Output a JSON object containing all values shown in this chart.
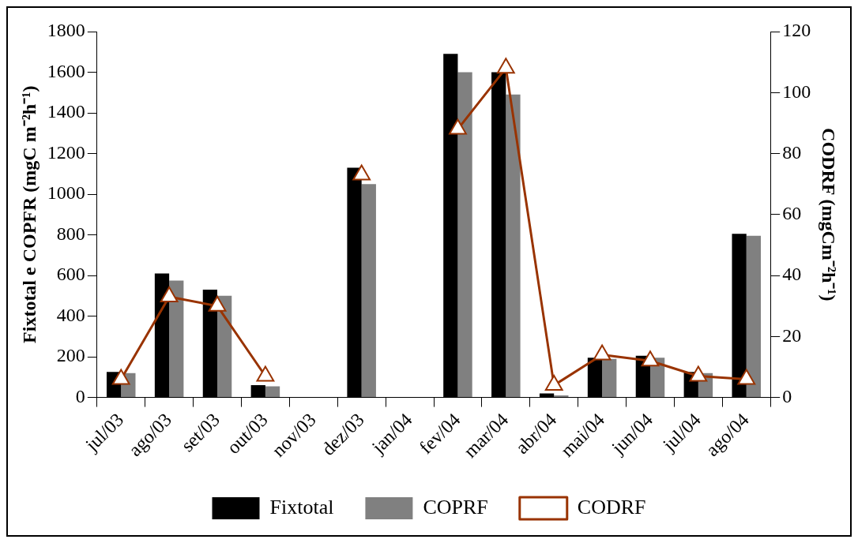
{
  "chart_data": {
    "type": "bar",
    "xlabel": null,
    "ylabel": "Fixtotal e COPFR (mgC m⁻²h⁻¹)",
    "y2label": "CODRF (mgCm⁻²h⁻¹)",
    "categories": [
      "jul/03",
      "ago/03",
      "set/03",
      "out/03",
      "nov/03",
      "dez/03",
      "jan/04",
      "fev/04",
      "mar/04",
      "abr/04",
      "mai/04",
      "jun/04",
      "jul/04",
      "ago/04"
    ],
    "series": [
      {
        "name": "Fixtotal",
        "color": "#000000",
        "values": [
          125,
          610,
          530,
          60,
          null,
          1130,
          null,
          1690,
          1600,
          20,
          195,
          205,
          125,
          805
        ]
      },
      {
        "name": "COPRF",
        "color": "#808080",
        "values": [
          120,
          575,
          500,
          55,
          null,
          1050,
          null,
          1600,
          1490,
          10,
          190,
          195,
          120,
          795
        ]
      },
      {
        "name": "CODRF",
        "type": "line",
        "axis": "y2",
        "color": "#993300",
        "marker": "triangle",
        "values": [
          6,
          33,
          30,
          7,
          null,
          73,
          null,
          88,
          108,
          4,
          14,
          12,
          7,
          6
        ]
      }
    ],
    "ylim": [
      0,
      1800
    ],
    "yticks": [
      0,
      200,
      400,
      600,
      800,
      1000,
      1200,
      1400,
      1600,
      1800
    ],
    "y2lim": [
      0,
      120
    ],
    "y2ticks": [
      0,
      20,
      40,
      60,
      80,
      100,
      120
    ],
    "grid": false,
    "legend": "bottom"
  }
}
